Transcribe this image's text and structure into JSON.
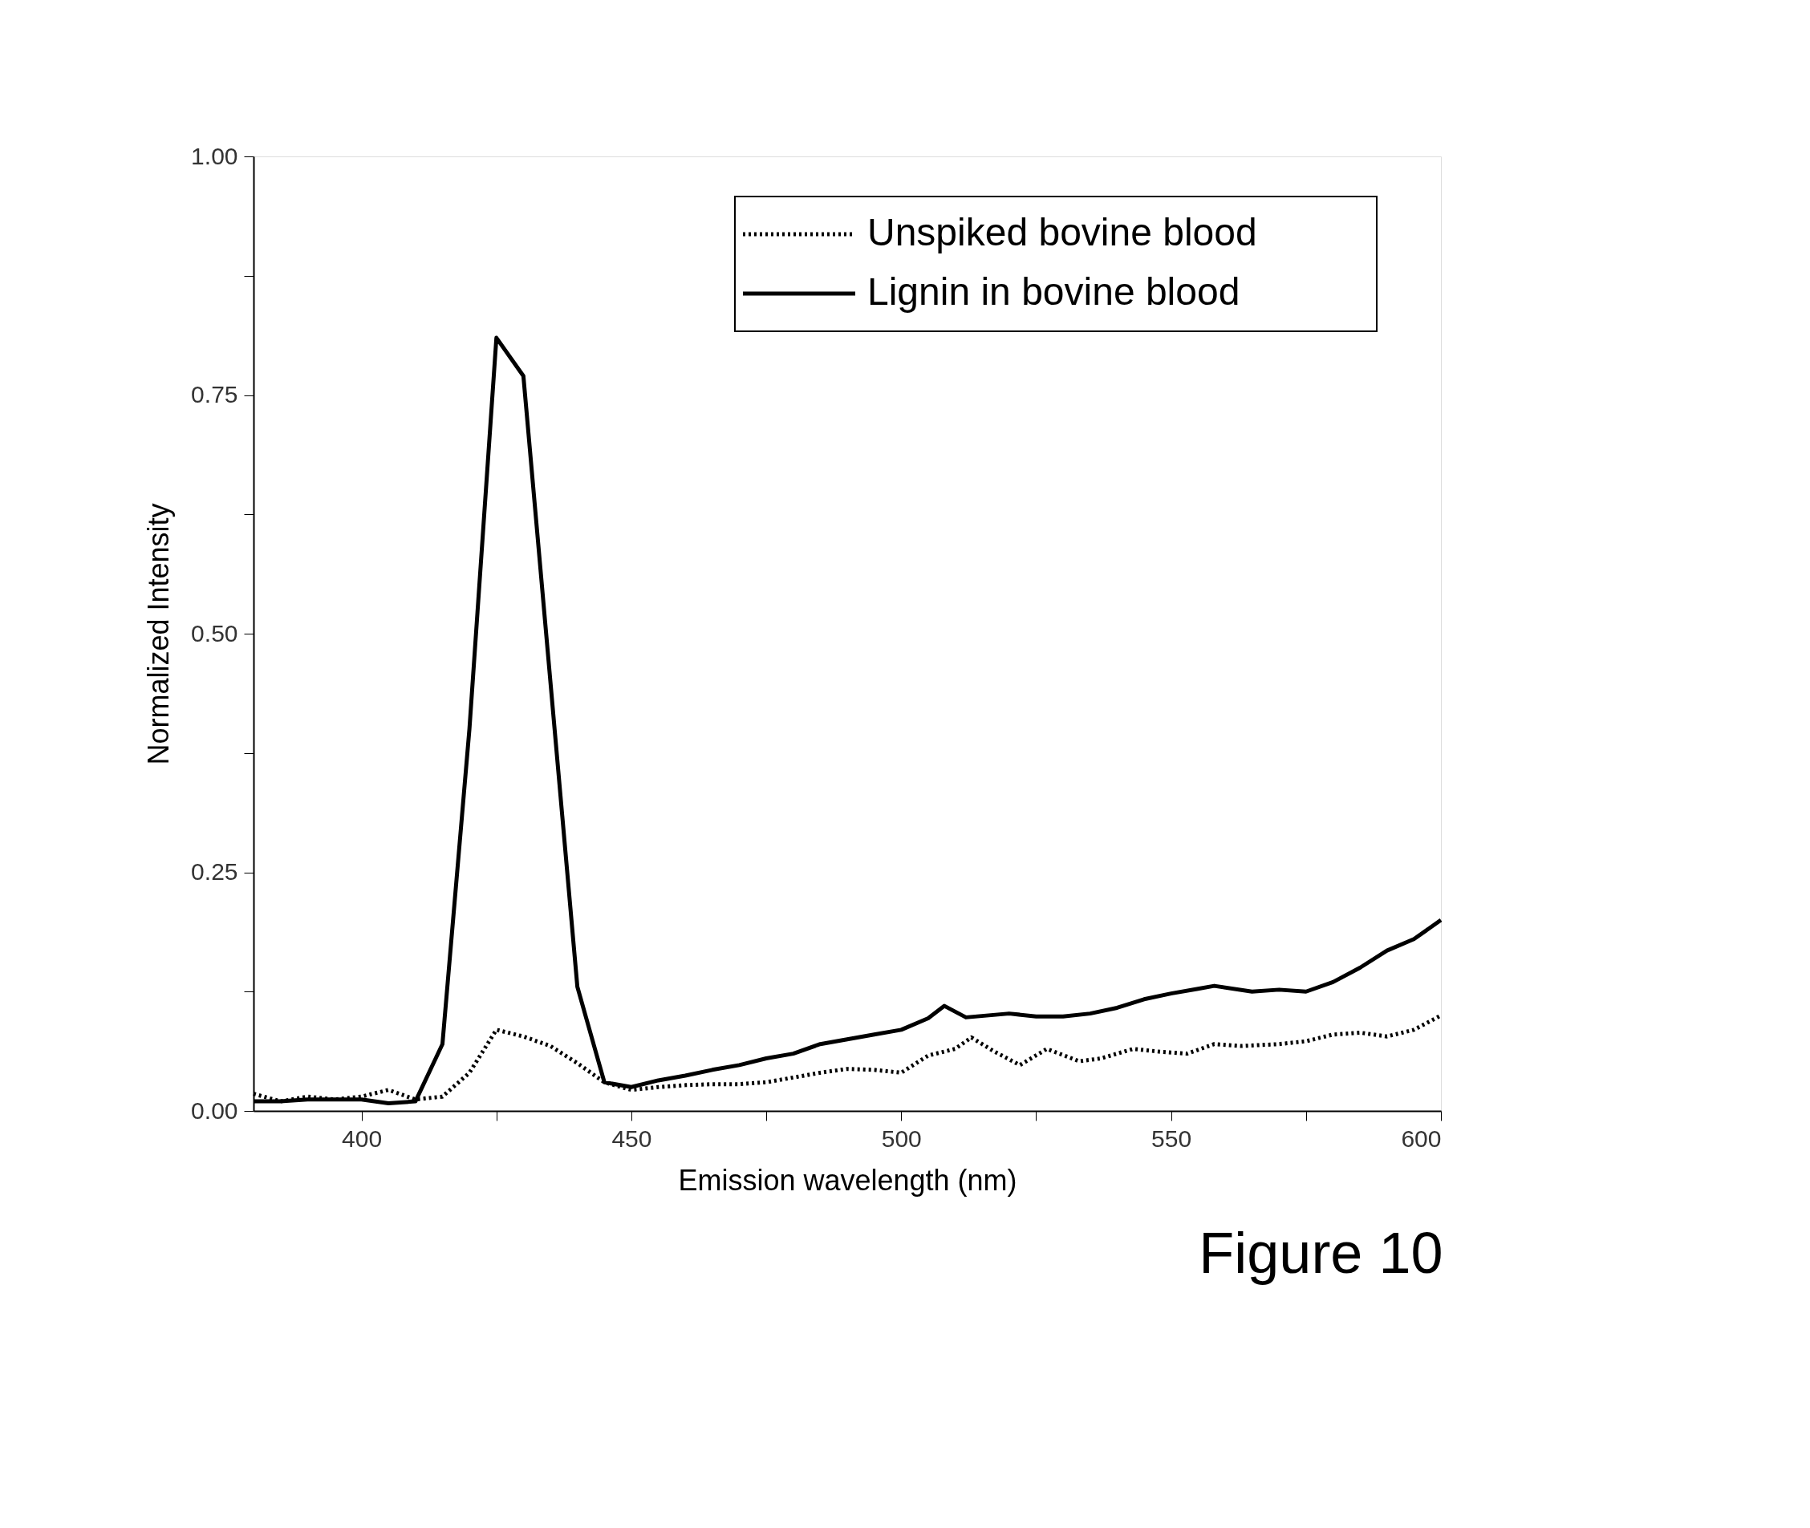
{
  "chart_data": {
    "type": "line",
    "xlabel": "Emission wavelength (nm)",
    "ylabel": "Normalized Intensity",
    "xlim": [
      380,
      600
    ],
    "ylim": [
      0,
      1
    ],
    "xticks": [
      400,
      {
        "value": 425,
        "label": null
      },
      450,
      {
        "value": 475,
        "label": null
      },
      500,
      {
        "value": 525,
        "label": null
      },
      550,
      {
        "value": 575,
        "label": null
      },
      600
    ],
    "yticks": [
      {
        "value": 0,
        "label": "0.00"
      },
      {
        "value": 0.125,
        "label": null
      },
      {
        "value": 0.25,
        "label": "0.25"
      },
      {
        "value": 0.375,
        "label": null
      },
      {
        "value": 0.5,
        "label": "0.50"
      },
      {
        "value": 0.625,
        "label": null
      },
      {
        "value": 0.75,
        "label": "0.75"
      },
      {
        "value": 0.875,
        "label": null
      },
      {
        "value": 1,
        "label": "1.00"
      }
    ],
    "grid": false,
    "legend": "top right",
    "marker": "none",
    "annotations": [
      "Figure 10"
    ],
    "series": [
      {
        "name": "Unspiked bovine blood",
        "color": "#000000",
        "line_style": "dotted",
        "x": [
          380,
          385,
          390,
          395,
          400,
          405,
          410,
          415,
          420,
          425,
          430,
          435,
          440,
          445,
          450,
          455,
          460,
          465,
          470,
          475,
          480,
          485,
          490,
          495,
          500,
          505,
          510,
          513,
          517,
          522,
          527,
          533,
          537,
          543,
          548,
          553,
          558,
          563,
          570,
          575,
          580,
          585,
          590,
          595,
          600
        ],
        "values": [
          0.018,
          0.01,
          0.015,
          0.012,
          0.015,
          0.022,
          0.012,
          0.015,
          0.04,
          0.085,
          0.078,
          0.068,
          0.05,
          0.03,
          0.022,
          0.025,
          0.027,
          0.028,
          0.028,
          0.03,
          0.035,
          0.04,
          0.044,
          0.043,
          0.04,
          0.058,
          0.065,
          0.077,
          0.063,
          0.048,
          0.065,
          0.052,
          0.055,
          0.065,
          0.062,
          0.06,
          0.07,
          0.068,
          0.07,
          0.073,
          0.08,
          0.082,
          0.078,
          0.085,
          0.1
        ]
      },
      {
        "name": "Lignin in bovine blood",
        "color": "#000000",
        "line_style": "solid",
        "x": [
          380,
          385,
          390,
          395,
          400,
          405,
          410,
          415,
          420,
          425,
          430,
          435,
          440,
          445,
          450,
          455,
          460,
          465,
          470,
          475,
          480,
          485,
          490,
          495,
          500,
          505,
          508,
          512,
          520,
          525,
          530,
          535,
          540,
          545,
          550,
          555,
          558,
          565,
          570,
          575,
          580,
          585,
          590,
          595,
          600
        ],
        "values": [
          0.01,
          0.01,
          0.012,
          0.012,
          0.012,
          0.008,
          0.01,
          0.07,
          0.4,
          0.81,
          0.77,
          0.45,
          0.13,
          0.03,
          0.025,
          0.032,
          0.037,
          0.043,
          0.048,
          0.055,
          0.06,
          0.07,
          0.075,
          0.08,
          0.085,
          0.097,
          0.11,
          0.098,
          0.102,
          0.099,
          0.099,
          0.102,
          0.108,
          0.117,
          0.123,
          0.128,
          0.131,
          0.125,
          0.127,
          0.125,
          0.135,
          0.15,
          0.168,
          0.18,
          0.2
        ]
      }
    ]
  }
}
